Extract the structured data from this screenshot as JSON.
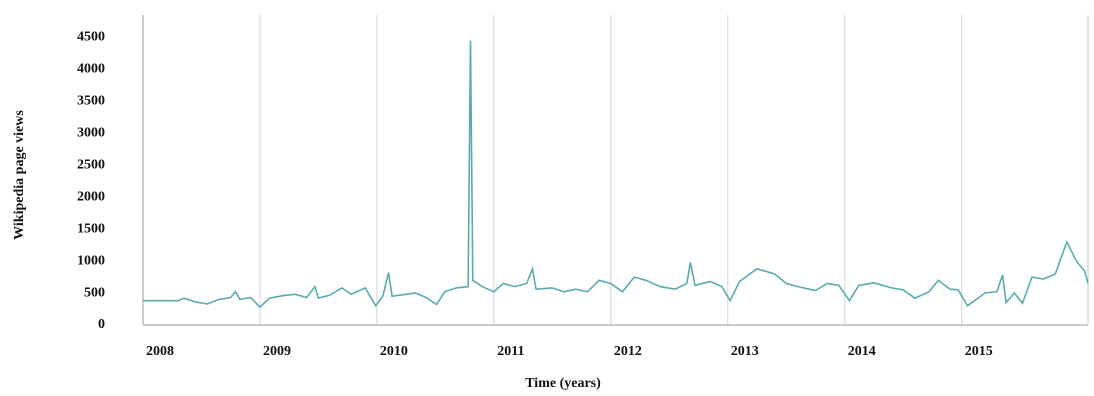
{
  "chart_data": {
    "type": "line",
    "y_label": "Wikipedia page views",
    "x_label": "Time (years)",
    "xlim": [
      2008,
      2016.08
    ],
    "xticks": [
      2008,
      2009,
      2010,
      2011,
      2012,
      2013,
      2014,
      2015
    ],
    "ylim": [
      0,
      4850
    ],
    "yticks": [
      0,
      500,
      1000,
      1500,
      2000,
      2500,
      3000,
      3500,
      4000,
      4500
    ],
    "grid": true,
    "series": [
      {
        "color": "#5aabb0",
        "x": [
          2008.0,
          2008.3,
          2008.35,
          2008.45,
          2008.55,
          2008.65,
          2008.75,
          2008.79,
          2008.83,
          2008.92,
          2009.0,
          2009.08,
          2009.2,
          2009.3,
          2009.4,
          2009.47,
          2009.5,
          2009.6,
          2009.7,
          2009.78,
          2009.9,
          2009.99,
          2010.05,
          2010.1,
          2010.13,
          2010.25,
          2010.33,
          2010.42,
          2010.51,
          2010.58,
          2010.68,
          2010.78,
          2010.8,
          2010.82,
          2010.9,
          2011.0,
          2011.08,
          2011.18,
          2011.28,
          2011.33,
          2011.36,
          2011.5,
          2011.6,
          2011.7,
          2011.8,
          2011.9,
          2012.0,
          2012.1,
          2012.2,
          2012.3,
          2012.42,
          2012.55,
          2012.65,
          2012.68,
          2012.72,
          2012.85,
          2012.95,
          2013.02,
          2013.1,
          2013.25,
          2013.4,
          2013.5,
          2013.6,
          2013.75,
          2013.85,
          2013.95,
          2014.04,
          2014.12,
          2014.25,
          2014.4,
          2014.5,
          2014.6,
          2014.72,
          2014.8,
          2014.9,
          2014.97,
          2015.05,
          2015.2,
          2015.3,
          2015.35,
          2015.38,
          2015.45,
          2015.52,
          2015.6,
          2015.7,
          2015.8,
          2015.9,
          2015.98,
          2016.05,
          2016.08
        ],
        "values": [
          380,
          380,
          420,
          360,
          330,
          400,
          430,
          520,
          400,
          430,
          280,
          420,
          460,
          480,
          430,
          600,
          420,
          470,
          580,
          480,
          580,
          300,
          450,
          820,
          450,
          480,
          500,
          430,
          320,
          520,
          580,
          600,
          4450,
          700,
          600,
          520,
          650,
          600,
          650,
          880,
          560,
          580,
          520,
          560,
          520,
          700,
          650,
          520,
          750,
          700,
          600,
          560,
          650,
          980,
          620,
          680,
          600,
          380,
          680,
          880,
          800,
          650,
          600,
          540,
          650,
          620,
          380,
          620,
          660,
          580,
          550,
          420,
          520,
          700,
          560,
          550,
          300,
          500,
          520,
          780,
          350,
          500,
          340,
          750,
          720,
          800,
          1300,
          1000,
          850,
          650
        ]
      }
    ]
  }
}
